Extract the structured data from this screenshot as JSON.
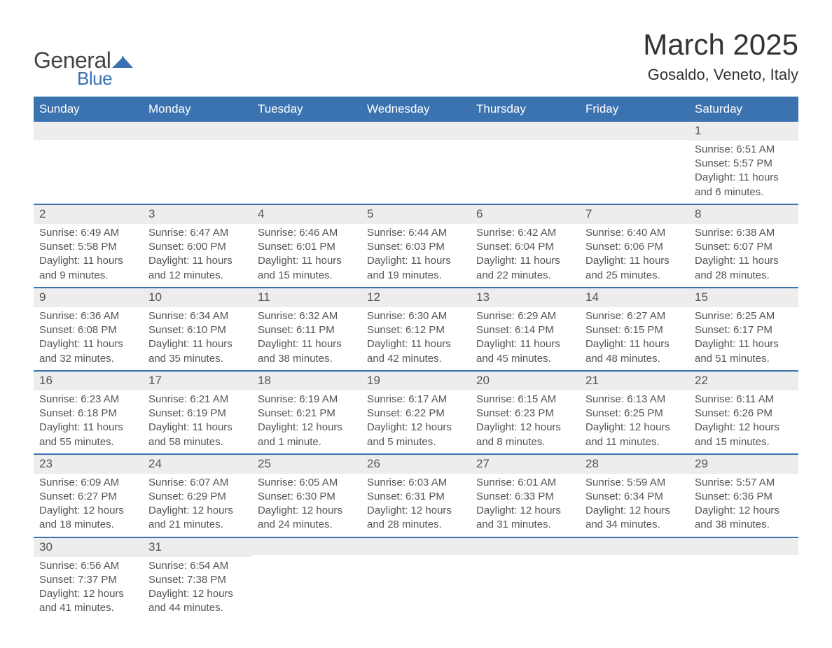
{
  "brand": {
    "part1": "General",
    "part2": "Blue"
  },
  "title": "March 2025",
  "subtitle": "Gosaldo, Veneto, Italy",
  "colors": {
    "accent": "#3b72b0",
    "header_text": "#ffffff",
    "daybar_bg": "#ededed",
    "text": "#555555",
    "title_text": "#333333",
    "background": "#ffffff"
  },
  "typography": {
    "title_fontsize": 42,
    "subtitle_fontsize": 22,
    "header_fontsize": 17,
    "daynum_fontsize": 17,
    "body_fontsize": 15
  },
  "weekdays": [
    "Sunday",
    "Monday",
    "Tuesday",
    "Wednesday",
    "Thursday",
    "Friday",
    "Saturday"
  ],
  "labels": {
    "sunrise": "Sunrise:",
    "sunset": "Sunset:",
    "daylight": "Daylight:"
  },
  "weeks": [
    [
      null,
      null,
      null,
      null,
      null,
      null,
      {
        "day": 1,
        "sunrise": "6:51 AM",
        "sunset": "5:57 PM",
        "daylight": "11 hours and 6 minutes."
      }
    ],
    [
      {
        "day": 2,
        "sunrise": "6:49 AM",
        "sunset": "5:58 PM",
        "daylight": "11 hours and 9 minutes."
      },
      {
        "day": 3,
        "sunrise": "6:47 AM",
        "sunset": "6:00 PM",
        "daylight": "11 hours and 12 minutes."
      },
      {
        "day": 4,
        "sunrise": "6:46 AM",
        "sunset": "6:01 PM",
        "daylight": "11 hours and 15 minutes."
      },
      {
        "day": 5,
        "sunrise": "6:44 AM",
        "sunset": "6:03 PM",
        "daylight": "11 hours and 19 minutes."
      },
      {
        "day": 6,
        "sunrise": "6:42 AM",
        "sunset": "6:04 PM",
        "daylight": "11 hours and 22 minutes."
      },
      {
        "day": 7,
        "sunrise": "6:40 AM",
        "sunset": "6:06 PM",
        "daylight": "11 hours and 25 minutes."
      },
      {
        "day": 8,
        "sunrise": "6:38 AM",
        "sunset": "6:07 PM",
        "daylight": "11 hours and 28 minutes."
      }
    ],
    [
      {
        "day": 9,
        "sunrise": "6:36 AM",
        "sunset": "6:08 PM",
        "daylight": "11 hours and 32 minutes."
      },
      {
        "day": 10,
        "sunrise": "6:34 AM",
        "sunset": "6:10 PM",
        "daylight": "11 hours and 35 minutes."
      },
      {
        "day": 11,
        "sunrise": "6:32 AM",
        "sunset": "6:11 PM",
        "daylight": "11 hours and 38 minutes."
      },
      {
        "day": 12,
        "sunrise": "6:30 AM",
        "sunset": "6:12 PM",
        "daylight": "11 hours and 42 minutes."
      },
      {
        "day": 13,
        "sunrise": "6:29 AM",
        "sunset": "6:14 PM",
        "daylight": "11 hours and 45 minutes."
      },
      {
        "day": 14,
        "sunrise": "6:27 AM",
        "sunset": "6:15 PM",
        "daylight": "11 hours and 48 minutes."
      },
      {
        "day": 15,
        "sunrise": "6:25 AM",
        "sunset": "6:17 PM",
        "daylight": "11 hours and 51 minutes."
      }
    ],
    [
      {
        "day": 16,
        "sunrise": "6:23 AM",
        "sunset": "6:18 PM",
        "daylight": "11 hours and 55 minutes."
      },
      {
        "day": 17,
        "sunrise": "6:21 AM",
        "sunset": "6:19 PM",
        "daylight": "11 hours and 58 minutes."
      },
      {
        "day": 18,
        "sunrise": "6:19 AM",
        "sunset": "6:21 PM",
        "daylight": "12 hours and 1 minute."
      },
      {
        "day": 19,
        "sunrise": "6:17 AM",
        "sunset": "6:22 PM",
        "daylight": "12 hours and 5 minutes."
      },
      {
        "day": 20,
        "sunrise": "6:15 AM",
        "sunset": "6:23 PM",
        "daylight": "12 hours and 8 minutes."
      },
      {
        "day": 21,
        "sunrise": "6:13 AM",
        "sunset": "6:25 PM",
        "daylight": "12 hours and 11 minutes."
      },
      {
        "day": 22,
        "sunrise": "6:11 AM",
        "sunset": "6:26 PM",
        "daylight": "12 hours and 15 minutes."
      }
    ],
    [
      {
        "day": 23,
        "sunrise": "6:09 AM",
        "sunset": "6:27 PM",
        "daylight": "12 hours and 18 minutes."
      },
      {
        "day": 24,
        "sunrise": "6:07 AM",
        "sunset": "6:29 PM",
        "daylight": "12 hours and 21 minutes."
      },
      {
        "day": 25,
        "sunrise": "6:05 AM",
        "sunset": "6:30 PM",
        "daylight": "12 hours and 24 minutes."
      },
      {
        "day": 26,
        "sunrise": "6:03 AM",
        "sunset": "6:31 PM",
        "daylight": "12 hours and 28 minutes."
      },
      {
        "day": 27,
        "sunrise": "6:01 AM",
        "sunset": "6:33 PM",
        "daylight": "12 hours and 31 minutes."
      },
      {
        "day": 28,
        "sunrise": "5:59 AM",
        "sunset": "6:34 PM",
        "daylight": "12 hours and 34 minutes."
      },
      {
        "day": 29,
        "sunrise": "5:57 AM",
        "sunset": "6:36 PM",
        "daylight": "12 hours and 38 minutes."
      }
    ],
    [
      {
        "day": 30,
        "sunrise": "6:56 AM",
        "sunset": "7:37 PM",
        "daylight": "12 hours and 41 minutes."
      },
      {
        "day": 31,
        "sunrise": "6:54 AM",
        "sunset": "7:38 PM",
        "daylight": "12 hours and 44 minutes."
      },
      null,
      null,
      null,
      null,
      null
    ]
  ]
}
